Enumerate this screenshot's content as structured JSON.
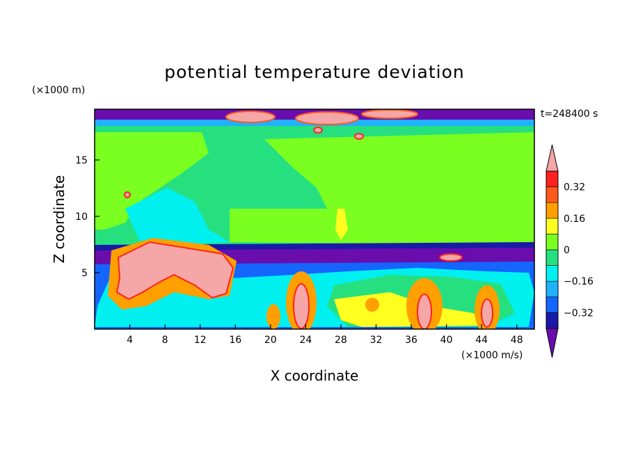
{
  "chart_data": {
    "type": "heatmap",
    "title": "potential temperature deviation",
    "xlabel": "X coordinate",
    "ylabel": "Z coordinate",
    "x_unit": "(×1000 m/s)",
    "y_unit": "(×1000 m)",
    "time_label": "t=248400 s",
    "xlim": [
      0,
      50
    ],
    "ylim": [
      0,
      19.5
    ],
    "x_ticks": [
      4,
      8,
      12,
      16,
      20,
      24,
      28,
      32,
      36,
      40,
      44,
      48
    ],
    "y_ticks": [
      5,
      10,
      15
    ],
    "colorbar": {
      "tick_labels": [
        "0.32",
        "0.16",
        "0",
        "−0.16",
        "−0.32"
      ],
      "tick_values": [
        0.32,
        0.16,
        0,
        -0.16,
        -0.32
      ],
      "levels": [
        -0.4,
        -0.32,
        -0.24,
        -0.16,
        -0.08,
        0,
        0.08,
        0.16,
        0.24,
        0.32,
        0.4
      ],
      "colors": [
        "#6a0dad",
        "#1a1aa8",
        "#1565ff",
        "#1fb2ff",
        "#00f0f0",
        "#26e080",
        "#7aff20",
        "#ffff20",
        "#ffa000",
        "#ff5a1a",
        "#ff2020",
        "#f5a6a6"
      ]
    },
    "regions": [
      {
        "name": "top-boundary",
        "value": -0.4
      },
      {
        "name": "upper-warm-blobs",
        "value": 0.4
      },
      {
        "name": "mid-green",
        "value": 0.04
      },
      {
        "name": "right-light-green",
        "value": 0.1
      },
      {
        "name": "cyan-pocket",
        "value": -0.08
      },
      {
        "name": "cold-band",
        "value": -0.4
      },
      {
        "name": "warm-plume-left",
        "value": 0.4
      },
      {
        "name": "warm-columns",
        "value": 0.4
      }
    ]
  }
}
